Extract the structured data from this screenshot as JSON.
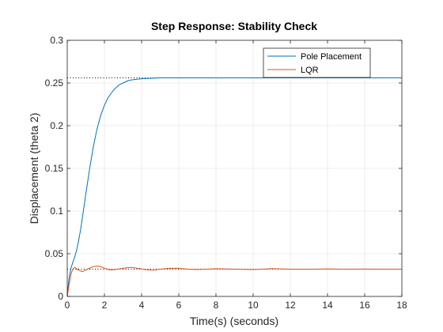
{
  "chart_data": {
    "type": "line",
    "title": "Step Response: Stability Check",
    "xlabel": "Time(s) (seconds)",
    "ylabel": "Displacement (theta 2)",
    "xlim": [
      0,
      18
    ],
    "ylim": [
      0,
      0.3
    ],
    "xticks": [
      "0",
      "2",
      "4",
      "6",
      "8",
      "10",
      "12",
      "14",
      "16",
      "18"
    ],
    "yticks": [
      "0",
      "0.05",
      "0.1",
      "0.15",
      "0.2",
      "0.25",
      "0.3"
    ],
    "grid": true,
    "legend_position": "top-right",
    "series": [
      {
        "name": "Pole Placement",
        "color": "#0072BD",
        "steady_state": 0.256,
        "x": [
          0,
          0.05,
          0.1,
          0.2,
          0.3,
          0.4,
          0.5,
          0.6,
          0.7,
          0.8,
          1.0,
          1.2,
          1.4,
          1.6,
          1.8,
          2.0,
          2.2,
          2.5,
          2.8,
          3.0,
          3.3,
          3.6,
          4.0,
          4.5,
          5.0,
          6.0,
          8.0,
          10.0,
          12.0,
          14.0,
          16.0,
          18.0
        ],
        "values": [
          0,
          0.012,
          0.022,
          0.033,
          0.04,
          0.046,
          0.054,
          0.064,
          0.076,
          0.09,
          0.12,
          0.149,
          0.175,
          0.196,
          0.212,
          0.224,
          0.233,
          0.242,
          0.248,
          0.25,
          0.253,
          0.254,
          0.255,
          0.2555,
          0.256,
          0.256,
          0.256,
          0.256,
          0.256,
          0.256,
          0.256,
          0.256
        ]
      },
      {
        "name": "LQR",
        "color": "#D95319",
        "steady_state": 0.032,
        "x": [
          0,
          0.1,
          0.2,
          0.3,
          0.4,
          0.6,
          0.8,
          1.0,
          1.2,
          1.4,
          1.6,
          1.8,
          2.0,
          2.3,
          2.6,
          3.0,
          3.4,
          3.8,
          4.2,
          4.6,
          5.0,
          5.5,
          6.0,
          6.5,
          7.0,
          7.5,
          8.0,
          9.0,
          10.0,
          11.0,
          12.0,
          13.0,
          14.0,
          15.0,
          16.0,
          17.0,
          18.0
        ],
        "values": [
          0,
          0.014,
          0.026,
          0.032,
          0.034,
          0.031,
          0.029,
          0.031,
          0.033,
          0.035,
          0.0355,
          0.035,
          0.033,
          0.031,
          0.0315,
          0.033,
          0.034,
          0.033,
          0.0315,
          0.0305,
          0.032,
          0.033,
          0.033,
          0.032,
          0.0315,
          0.032,
          0.0325,
          0.032,
          0.0315,
          0.0325,
          0.032,
          0.0318,
          0.0322,
          0.032,
          0.0321,
          0.0319,
          0.032
        ]
      }
    ]
  }
}
